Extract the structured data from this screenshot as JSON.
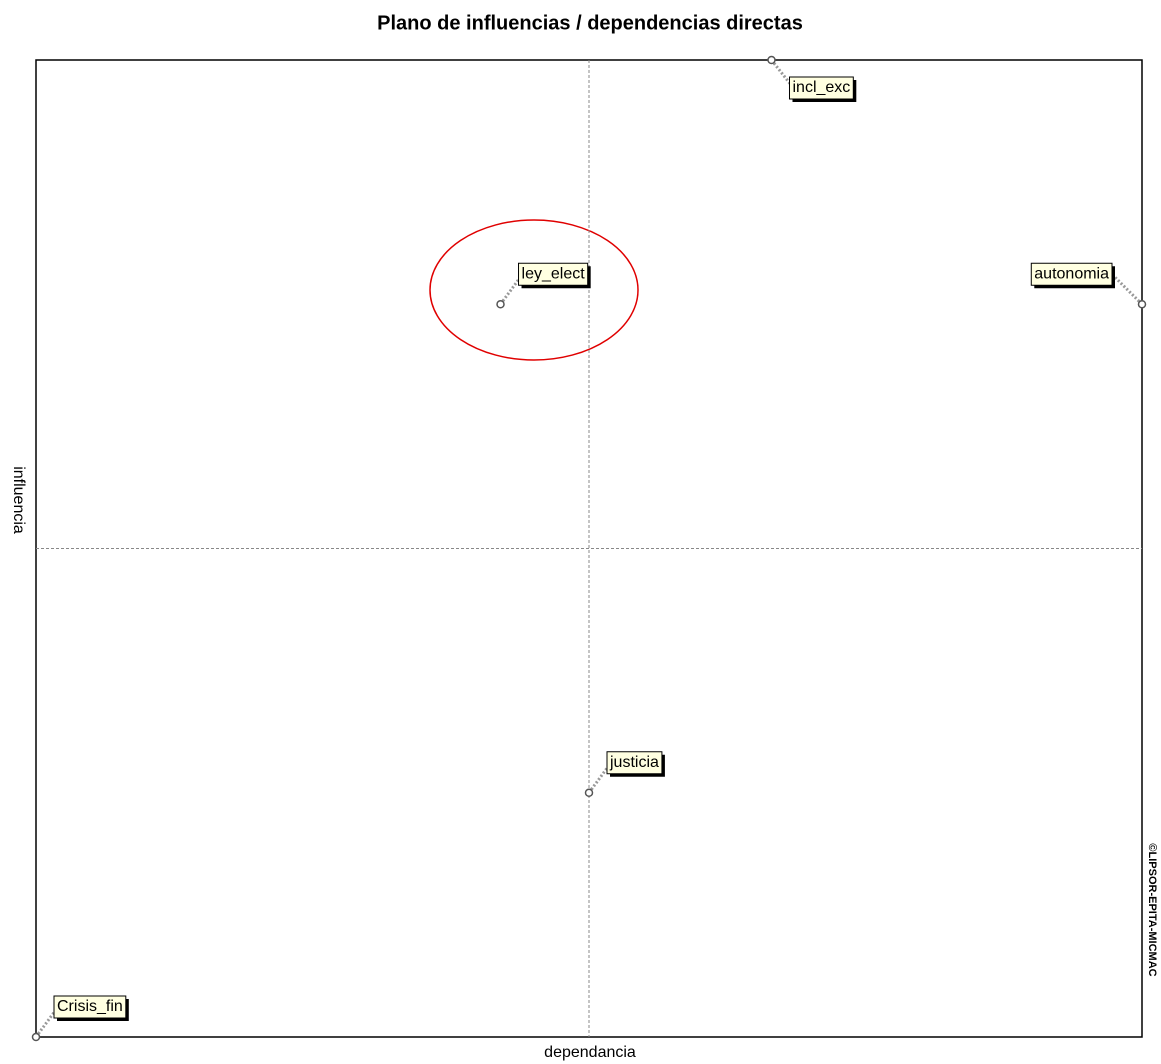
{
  "chart_data": {
    "type": "scatter",
    "title": "Plano de influencias / dependencias directas",
    "x_label": "dependancia",
    "y_label": "influencia",
    "credit": "©LIPSOR-EPITA-MICMAC",
    "labels": [
      "incl_exc",
      "ley_elect",
      "autonomia",
      "justicia",
      "Crisis_fin"
    ],
    "x": [
      66.5,
      42,
      100,
      50,
      0
    ],
    "values": [
      100,
      75,
      75,
      25,
      0
    ],
    "xlim": [
      0,
      100
    ],
    "ylim": [
      0,
      100
    ],
    "crosshair": [
      50,
      50
    ]
  }
}
